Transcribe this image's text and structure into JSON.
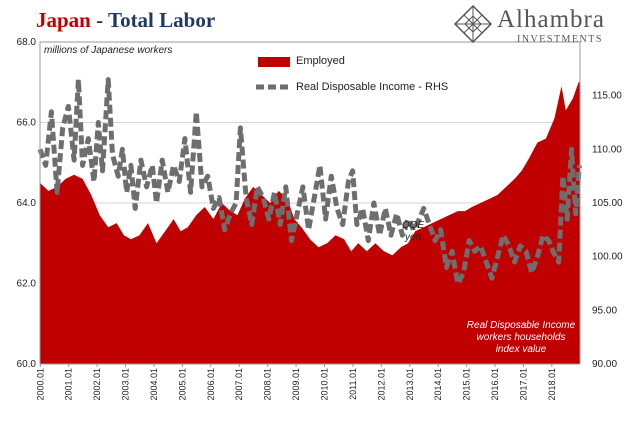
{
  "header": {
    "title_part1": "Japan",
    "title_sep": " - ",
    "title_part2": "Total Labor"
  },
  "logo": {
    "name": "Alhambra",
    "subtitle": "INVESTMENTS",
    "icon": "diamond-lattice-icon"
  },
  "units_label": "millions of Japanese workers",
  "annotations": {
    "qqe": "QQE",
    "yen": "yen",
    "note_line1": "Real Disposable Income",
    "note_line2": "workers households",
    "note_line3": "index value"
  },
  "colors": {
    "employed": "#c00000",
    "rdi": "#6e6e6e",
    "title_red": "#c00000",
    "title_blue": "#1f3864"
  },
  "chart_data": {
    "type": "area",
    "title": "",
    "y_left": {
      "min": 60.0,
      "max": 68.0,
      "ticks": [
        "60.0",
        "62.0",
        "64.0",
        "66.0",
        "68.0"
      ]
    },
    "y_right": {
      "min": 90,
      "max": 120,
      "ticks": [
        "90.00",
        "95.00",
        "100.00",
        "105.00",
        "110.00",
        "115.00"
      ]
    },
    "x_tick_labels": [
      "2000.01",
      "2001.01",
      "2002.01",
      "2003.01",
      "2004.01",
      "2005.01",
      "2006.01",
      "2007.01",
      "2008.01",
      "2009.01",
      "2010.01",
      "2011.01",
      "2012.01",
      "2013.01",
      "2014.01",
      "2015.01",
      "2016.01",
      "2017.01",
      "2018.01"
    ],
    "x_range": [
      "2000.01",
      "2018.12"
    ],
    "series": [
      {
        "name": "Employed",
        "axis": "left",
        "style": "area",
        "points": [
          [
            2000.0,
            64.5
          ],
          [
            2000.3,
            64.3
          ],
          [
            2000.6,
            64.4
          ],
          [
            2000.9,
            64.6
          ],
          [
            2001.2,
            64.7
          ],
          [
            2001.5,
            64.6
          ],
          [
            2001.8,
            64.2
          ],
          [
            2002.1,
            63.7
          ],
          [
            2002.4,
            63.4
          ],
          [
            2002.7,
            63.5
          ],
          [
            2002.95,
            63.2
          ],
          [
            2003.2,
            63.1
          ],
          [
            2003.5,
            63.2
          ],
          [
            2003.8,
            63.5
          ],
          [
            2004.1,
            63.0
          ],
          [
            2004.4,
            63.3
          ],
          [
            2004.7,
            63.6
          ],
          [
            2004.95,
            63.3
          ],
          [
            2005.2,
            63.4
          ],
          [
            2005.5,
            63.7
          ],
          [
            2005.8,
            63.9
          ],
          [
            2006.1,
            63.6
          ],
          [
            2006.4,
            64.0
          ],
          [
            2006.7,
            63.8
          ],
          [
            2006.95,
            63.7
          ],
          [
            2007.2,
            64.1
          ],
          [
            2007.5,
            64.4
          ],
          [
            2007.8,
            64.2
          ],
          [
            2008.1,
            64.0
          ],
          [
            2008.4,
            64.3
          ],
          [
            2008.7,
            64.1
          ],
          [
            2008.95,
            63.6
          ],
          [
            2009.2,
            63.4
          ],
          [
            2009.5,
            63.1
          ],
          [
            2009.8,
            62.9
          ],
          [
            2010.1,
            63.0
          ],
          [
            2010.4,
            63.2
          ],
          [
            2010.7,
            63.1
          ],
          [
            2010.95,
            62.8
          ],
          [
            2011.2,
            63.0
          ],
          [
            2011.5,
            62.8
          ],
          [
            2011.8,
            63.0
          ],
          [
            2012.1,
            62.8
          ],
          [
            2012.4,
            62.7
          ],
          [
            2012.7,
            62.9
          ],
          [
            2012.95,
            63.0
          ],
          [
            2013.2,
            63.3
          ],
          [
            2013.5,
            63.4
          ],
          [
            2013.8,
            63.5
          ],
          [
            2014.1,
            63.6
          ],
          [
            2014.4,
            63.7
          ],
          [
            2014.7,
            63.8
          ],
          [
            2014.95,
            63.8
          ],
          [
            2015.2,
            63.9
          ],
          [
            2015.5,
            64.0
          ],
          [
            2015.8,
            64.1
          ],
          [
            2016.1,
            64.2
          ],
          [
            2016.4,
            64.4
          ],
          [
            2016.7,
            64.6
          ],
          [
            2016.95,
            64.8
          ],
          [
            2017.2,
            65.1
          ],
          [
            2017.5,
            65.5
          ],
          [
            2017.8,
            65.6
          ],
          [
            2018.1,
            66.1
          ],
          [
            2018.35,
            66.9
          ],
          [
            2018.5,
            66.3
          ],
          [
            2018.75,
            66.6
          ],
          [
            2018.95,
            67.0
          ]
        ]
      },
      {
        "name": "Real Disposable Income - RHS",
        "axis": "right",
        "style": "dashed",
        "points": [
          [
            2000.0,
            110.0
          ],
          [
            2000.2,
            108.5
          ],
          [
            2000.4,
            113.5
          ],
          [
            2000.6,
            106.0
          ],
          [
            2000.8,
            112.0
          ],
          [
            2001.0,
            114.0
          ],
          [
            2001.2,
            109.0
          ],
          [
            2001.35,
            116.5
          ],
          [
            2001.5,
            108.5
          ],
          [
            2001.7,
            111.0
          ],
          [
            2001.9,
            107.0
          ],
          [
            2002.05,
            112.5
          ],
          [
            2002.2,
            108.0
          ],
          [
            2002.4,
            116.5
          ],
          [
            2002.55,
            109.5
          ],
          [
            2002.75,
            107.5
          ],
          [
            2002.9,
            110.0
          ],
          [
            2003.05,
            106.0
          ],
          [
            2003.2,
            108.5
          ],
          [
            2003.35,
            104.5
          ],
          [
            2003.55,
            109.0
          ],
          [
            2003.75,
            106.5
          ],
          [
            2003.95,
            108.5
          ],
          [
            2004.1,
            105.0
          ],
          [
            2004.3,
            109.0
          ],
          [
            2004.5,
            106.0
          ],
          [
            2004.7,
            108.5
          ],
          [
            2004.9,
            107.0
          ],
          [
            2005.1,
            111.0
          ],
          [
            2005.3,
            106.0
          ],
          [
            2005.5,
            113.5
          ],
          [
            2005.7,
            106.5
          ],
          [
            2005.9,
            107.5
          ],
          [
            2006.1,
            104.5
          ],
          [
            2006.3,
            105.5
          ],
          [
            2006.5,
            102.5
          ],
          [
            2006.7,
            104.0
          ],
          [
            2006.9,
            105.0
          ],
          [
            2007.05,
            112.0
          ],
          [
            2007.25,
            105.5
          ],
          [
            2007.45,
            103.0
          ],
          [
            2007.65,
            106.5
          ],
          [
            2007.85,
            105.5
          ],
          [
            2008.05,
            103.5
          ],
          [
            2008.25,
            106.0
          ],
          [
            2008.45,
            103.0
          ],
          [
            2008.65,
            106.5
          ],
          [
            2008.85,
            101.5
          ],
          [
            2009.05,
            104.0
          ],
          [
            2009.25,
            106.5
          ],
          [
            2009.45,
            102.5
          ],
          [
            2009.65,
            105.5
          ],
          [
            2009.85,
            108.5
          ],
          [
            2010.05,
            103.5
          ],
          [
            2010.25,
            107.5
          ],
          [
            2010.45,
            104.5
          ],
          [
            2010.65,
            103.0
          ],
          [
            2010.85,
            107.0
          ],
          [
            2011.0,
            108.0
          ],
          [
            2011.15,
            103.0
          ],
          [
            2011.35,
            104.5
          ],
          [
            2011.55,
            101.5
          ],
          [
            2011.75,
            105.0
          ],
          [
            2011.95,
            102.0
          ],
          [
            2012.15,
            104.5
          ],
          [
            2012.35,
            102.0
          ],
          [
            2012.55,
            104.0
          ],
          [
            2012.75,
            102.0
          ],
          [
            2012.95,
            103.5
          ],
          [
            2013.15,
            102.5
          ],
          [
            2013.35,
            103.5
          ],
          [
            2013.5,
            104.5
          ],
          [
            2013.7,
            103.0
          ],
          [
            2013.9,
            101.5
          ],
          [
            2014.1,
            102.5
          ],
          [
            2014.3,
            99.0
          ],
          [
            2014.5,
            100.5
          ],
          [
            2014.7,
            97.5
          ],
          [
            2014.9,
            98.5
          ],
          [
            2015.1,
            101.5
          ],
          [
            2015.3,
            100.5
          ],
          [
            2015.5,
            101.0
          ],
          [
            2015.7,
            99.5
          ],
          [
            2015.9,
            98.0
          ],
          [
            2016.1,
            100.0
          ],
          [
            2016.3,
            102.0
          ],
          [
            2016.5,
            101.0
          ],
          [
            2016.7,
            99.5
          ],
          [
            2016.9,
            101.0
          ],
          [
            2017.1,
            100.5
          ],
          [
            2017.3,
            98.5
          ],
          [
            2017.5,
            100.0
          ],
          [
            2017.7,
            102.0
          ],
          [
            2017.9,
            101.5
          ],
          [
            2018.05,
            100.5
          ],
          [
            2018.25,
            99.5
          ],
          [
            2018.4,
            107.5
          ],
          [
            2018.55,
            103.5
          ],
          [
            2018.7,
            110.0
          ],
          [
            2018.85,
            104.0
          ],
          [
            2018.98,
            108.5
          ]
        ]
      }
    ],
    "legend": [
      "Employed",
      "Real Disposable Income - RHS"
    ],
    "grid": true,
    "legend_position": "top-center"
  }
}
